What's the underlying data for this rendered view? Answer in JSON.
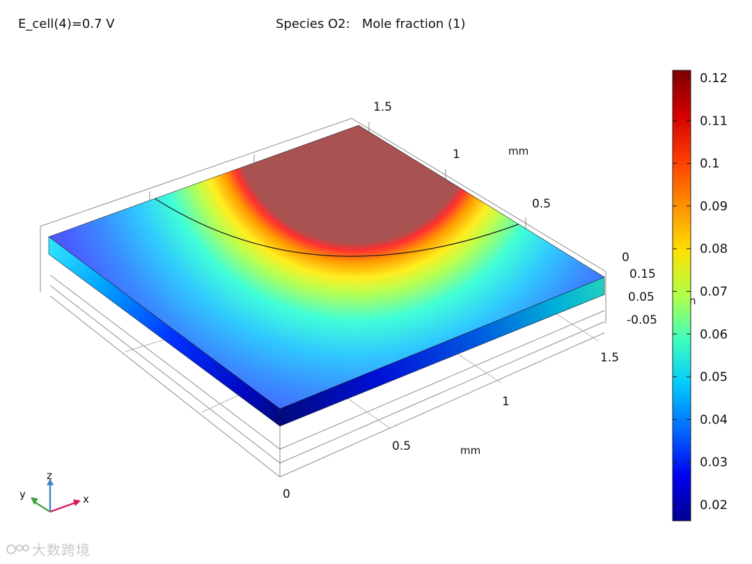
{
  "header": {
    "left": "E_cell(4)=0.7 V",
    "center": "Species O2:   Mole fraction (1)"
  },
  "axes": {
    "top_ticks": [
      "1.5",
      "1",
      "0.5",
      "0"
    ],
    "top_unit": "mm",
    "z_ticks": [
      "0.15",
      "0.05",
      "-0.05"
    ],
    "z_unit_fragment": "n",
    "front_ticks": [
      "1.5",
      "1",
      "0.5",
      "0"
    ],
    "front_unit": "mm"
  },
  "colorbar": {
    "labels": [
      "0.12",
      "0.11",
      "0.1",
      "0.09",
      "0.08",
      "0.07",
      "0.06",
      "0.05",
      "0.04",
      "0.03",
      "0.02"
    ],
    "colors": [
      "#7f0000",
      "#d40000",
      "#ff3c00",
      "#ff9000",
      "#ffe000",
      "#b0ff48",
      "#3cffc0",
      "#00c8ff",
      "#0068ff",
      "#0000f0",
      "#00008f"
    ]
  },
  "triad": {
    "x": "x",
    "y": "y",
    "z": "z"
  },
  "watermark": "大数跨境",
  "colors": {
    "inlet_region": "#a85252",
    "x_axis": "#d81b60",
    "y_axis": "#43a047",
    "z_axis": "#4682c8"
  }
}
